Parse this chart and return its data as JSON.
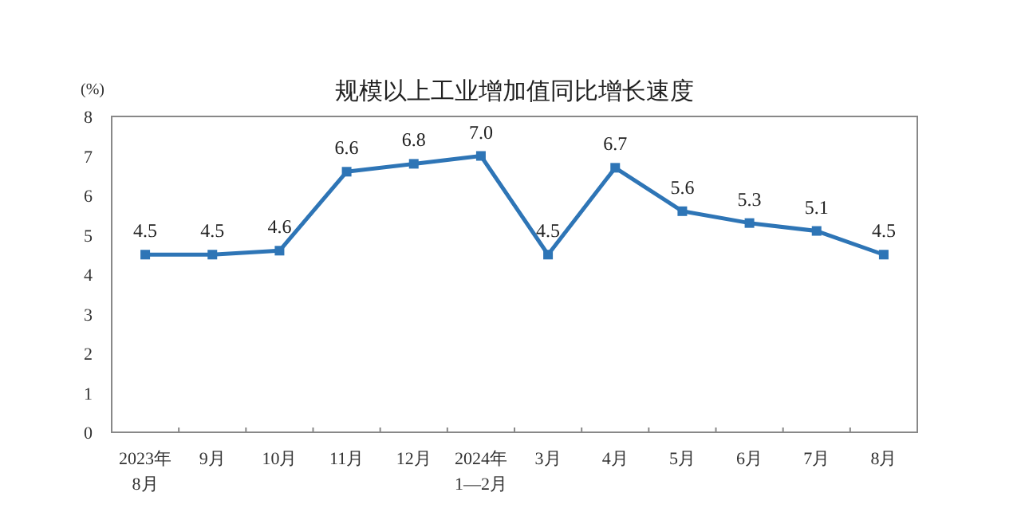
{
  "chart_data": {
    "type": "line",
    "title": "规模以上工业增加值同比增长速度",
    "ylabel": "(%)",
    "categories": [
      "2023年\n8月",
      "9月",
      "10月",
      "11月",
      "12月",
      "2024年\n1—2月",
      "3月",
      "4月",
      "5月",
      "6月",
      "7月",
      "8月"
    ],
    "series": [
      {
        "color": "#2e75b6",
        "values": [
          4.5,
          4.5,
          4.6,
          6.6,
          6.8,
          7.0,
          4.5,
          6.7,
          5.6,
          5.3,
          5.1,
          4.5
        ],
        "value_labels": [
          "4.5",
          "4.5",
          "4.6",
          "6.6",
          "6.8",
          "7.0",
          "4.5",
          "6.7",
          "5.6",
          "5.3",
          "5.1",
          "4.5"
        ]
      }
    ],
    "ylim": [
      0,
      8
    ],
    "yticks": [
      0,
      1,
      2,
      3,
      4,
      5,
      6,
      7,
      8
    ],
    "grid": false,
    "marker": "square",
    "line_style": "solid"
  }
}
